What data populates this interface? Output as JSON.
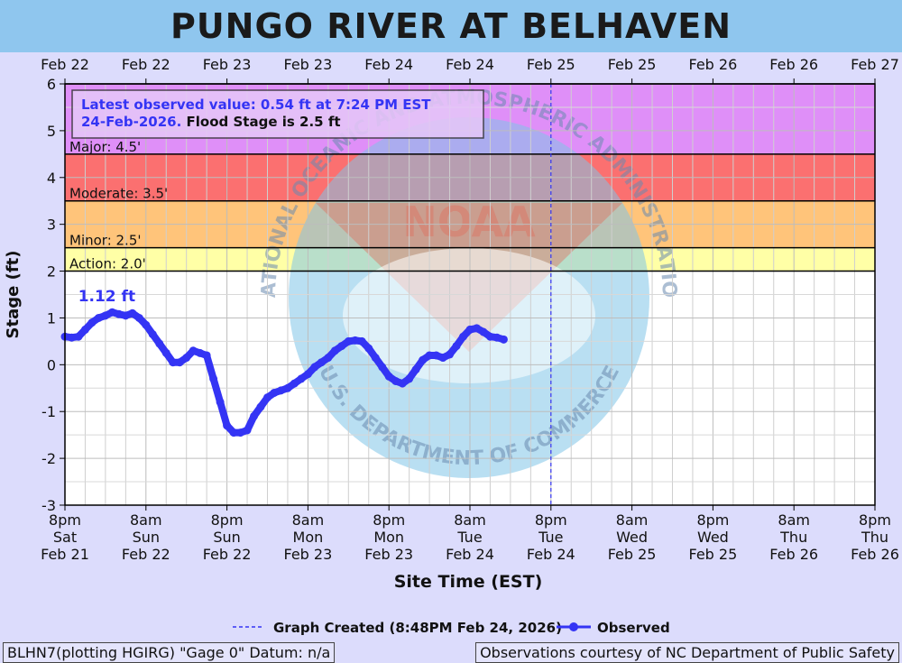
{
  "title": "PUNGO RIVER AT BELHAVEN",
  "colors": {
    "background": "#dcdcfc",
    "title_bar": "#8fc6ee",
    "major": "#df8ff8",
    "moderate": "#fb7070",
    "minor": "#ffc47a",
    "action": "#ffffa6",
    "observed": "#3434f4",
    "watermark_blue": "#7fc4e8",
    "watermark_red": "#e07060"
  },
  "info_box": {
    "line1": "Latest observed value: 0.54 ft at 7:24 PM EST",
    "line2_blue": "24-Feb-2026.",
    "line2_black": "Flood Stage is 2.5 ft"
  },
  "peak_label": "1.12 ft",
  "watermark": {
    "center_text": "NOAA",
    "top_arc": "NATIONAL OCEANIC AND ATMOSPHERIC ADMINISTRATION",
    "bottom_arc": "U.S. DEPARTMENT OF COMMERCE"
  },
  "legend": {
    "created": "Graph Created (8:48PM Feb 24, 2026)",
    "observed": "Observed"
  },
  "footer": {
    "left": "BLHN7(plotting HGIRG) \"Gage 0\" Datum: n/a",
    "right": "Observations courtesy of NC Department of Public Safety"
  },
  "chart_data": {
    "type": "line",
    "title": "PUNGO RIVER AT BELHAVEN",
    "xlabel": "Site Time (EST)",
    "ylabel": "Stage (ft)",
    "ylim": [
      -3,
      6
    ],
    "yticks": [
      -3,
      -2,
      -1,
      0,
      1,
      2,
      3,
      4,
      5,
      6
    ],
    "x_unit": "hours",
    "xlim": [
      0,
      120
    ],
    "grid": true,
    "top_tick_labels": [
      "Feb 22",
      "Feb 22",
      "Feb 23",
      "Feb 23",
      "Feb 24",
      "Feb 24",
      "Feb 25",
      "Feb 25",
      "Feb 26",
      "Feb 26",
      "Feb 27"
    ],
    "bottom_tick_labels": [
      [
        "8pm",
        "Sat",
        "Feb 21"
      ],
      [
        "8am",
        "Sun",
        "Feb 22"
      ],
      [
        "8pm",
        "Sun",
        "Feb 22"
      ],
      [
        "8am",
        "Mon",
        "Feb 23"
      ],
      [
        "8pm",
        "Mon",
        "Feb 23"
      ],
      [
        "8am",
        "Tue",
        "Feb 24"
      ],
      [
        "8pm",
        "Tue",
        "Feb 24"
      ],
      [
        "8am",
        "Wed",
        "Feb 25"
      ],
      [
        "8pm",
        "Wed",
        "Feb 25"
      ],
      [
        "8am",
        "Thu",
        "Feb 26"
      ],
      [
        "8pm",
        "Thu",
        "Feb 26"
      ]
    ],
    "flood_categories": [
      {
        "name": "Major",
        "label": "Major: 4.5'",
        "from": 4.5,
        "to": 6
      },
      {
        "name": "Moderate",
        "label": "Moderate: 3.5'",
        "from": 3.5,
        "to": 4.5
      },
      {
        "name": "Minor",
        "label": "Minor: 2.5'",
        "from": 2.5,
        "to": 3.5
      },
      {
        "name": "Action",
        "label": "Action: 2.0'",
        "from": 2.0,
        "to": 2.5
      }
    ],
    "graph_created_x": 72,
    "series": [
      {
        "name": "Observed",
        "x": [
          0,
          1,
          2,
          3,
          4,
          5,
          6,
          7,
          8,
          9,
          10,
          11,
          12,
          13,
          14,
          15,
          16,
          17,
          18,
          19,
          20,
          21,
          22,
          23,
          24,
          25,
          26,
          27,
          28,
          29,
          30,
          31,
          32,
          33,
          34,
          35,
          36,
          37,
          38,
          39,
          40,
          41,
          42,
          43,
          44,
          45,
          46,
          47,
          48,
          49,
          50,
          51,
          52,
          53,
          54,
          55,
          56,
          57,
          58,
          59,
          60,
          61,
          62,
          63,
          64,
          65,
          66,
          67,
          68,
          69,
          70,
          71
        ],
        "y": [
          0.6,
          0.58,
          0.6,
          0.75,
          0.9,
          1.0,
          1.05,
          1.12,
          1.08,
          1.05,
          1.1,
          1.0,
          0.85,
          0.65,
          0.45,
          0.25,
          0.05,
          0.05,
          0.15,
          0.3,
          0.25,
          0.2,
          -0.3,
          -0.8,
          -1.3,
          -1.45,
          -1.45,
          -1.4,
          -1.1,
          -0.9,
          -0.7,
          -0.6,
          -0.55,
          -0.5,
          -0.4,
          -0.3,
          -0.2,
          -0.05,
          0.05,
          0.15,
          0.3,
          0.4,
          0.5,
          0.52,
          0.5,
          0.35,
          0.15,
          -0.05,
          -0.25,
          -0.35,
          -0.4,
          -0.3,
          -0.1,
          0.1,
          0.2,
          0.2,
          0.15,
          0.22,
          0.4,
          0.6,
          0.75,
          0.78,
          0.7,
          0.6,
          0.58,
          0.54,
          null,
          null,
          null,
          null,
          null,
          null
        ]
      }
    ]
  }
}
